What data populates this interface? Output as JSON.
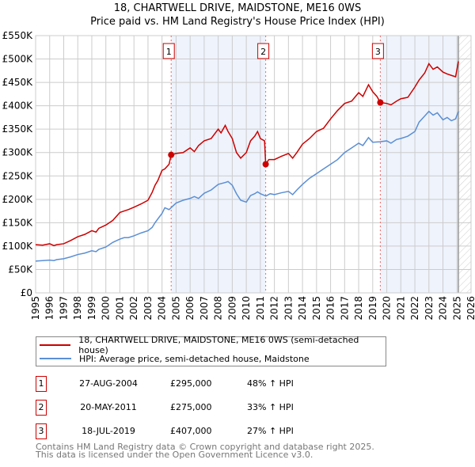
{
  "chart_data": {
    "type": "line",
    "title": "18, CHARTWELL DRIVE, MAIDSTONE, ME16 0WS",
    "subtitle": "Price paid vs. HM Land Registry's House Price Index (HPI)",
    "xlim": [
      1995,
      2026
    ],
    "ylim": [
      0,
      550000
    ],
    "yticks": [
      {
        "v": 0,
        "label": "£0"
      },
      {
        "v": 50000,
        "label": "£50K"
      },
      {
        "v": 100000,
        "label": "£100K"
      },
      {
        "v": 150000,
        "label": "£150K"
      },
      {
        "v": 200000,
        "label": "£200K"
      },
      {
        "v": 250000,
        "label": "£250K"
      },
      {
        "v": 300000,
        "label": "£300K"
      },
      {
        "v": 350000,
        "label": "£350K"
      },
      {
        "v": 400000,
        "label": "£400K"
      },
      {
        "v": 450000,
        "label": "£450K"
      },
      {
        "v": 500000,
        "label": "£500K"
      },
      {
        "v": 550000,
        "label": "£550K"
      }
    ],
    "xticks": [
      "1995",
      "1996",
      "1997",
      "1998",
      "1999",
      "2000",
      "2001",
      "2002",
      "2003",
      "2004",
      "2005",
      "2006",
      "2007",
      "2008",
      "2009",
      "2010",
      "2011",
      "2012",
      "2013",
      "2014",
      "2015",
      "2016",
      "2017",
      "2018",
      "2019",
      "2020",
      "2021",
      "2022",
      "2023",
      "2024",
      "2025",
      "2026"
    ],
    "grid": true,
    "forecast_from": 2025.1,
    "series": [
      {
        "name": "18, CHARTWELL DRIVE, MAIDSTONE, ME16 0WS (semi-detached house)",
        "color": "#cc0000",
        "x": [
          1995,
          1995.5,
          1996,
          1996.3,
          1996.5,
          1997,
          1997.5,
          1998,
          1998.5,
          1999,
          1999.3,
          1999.5,
          2000,
          2000.5,
          2001,
          2001.3,
          2001.6,
          2002,
          2002.5,
          2003,
          2003.3,
          2003.5,
          2003.7,
          2004,
          2004.2,
          2004.5,
          2004.65,
          2005,
          2005.5,
          2006,
          2006.3,
          2006.6,
          2007,
          2007.5,
          2008,
          2008.2,
          2008.5,
          2008.7,
          2009,
          2009.3,
          2009.6,
          2010,
          2010.3,
          2010.6,
          2010.8,
          2011,
          2011.3,
          2011.38,
          2011.6,
          2012,
          2012.5,
          2013,
          2013.3,
          2013.6,
          2014,
          2014.5,
          2015,
          2015.5,
          2016,
          2016.5,
          2017,
          2017.5,
          2018,
          2018.3,
          2018.7,
          2019,
          2019.3,
          2019.54,
          2020,
          2020.3,
          2020.7,
          2021,
          2021.5,
          2022,
          2022.3,
          2022.7,
          2023,
          2023.3,
          2023.6,
          2024,
          2024.3,
          2024.6,
          2024.9,
          2025.1
        ],
        "y": [
          103,
          102,
          105,
          101,
          103,
          105,
          112,
          120,
          125,
          133,
          130,
          138,
          145,
          155,
          172,
          175,
          178,
          183,
          190,
          198,
          215,
          230,
          240,
          262,
          265,
          275,
          295,
          298,
          300,
          310,
          302,
          315,
          325,
          330,
          350,
          342,
          358,
          345,
          330,
          300,
          288,
          300,
          325,
          335,
          345,
          330,
          325,
          275,
          285,
          285,
          292,
          298,
          288,
          300,
          318,
          330,
          345,
          352,
          372,
          390,
          405,
          410,
          428,
          420,
          445,
          430,
          420,
          407,
          405,
          402,
          410,
          415,
          418,
          440,
          455,
          470,
          490,
          478,
          483,
          472,
          468,
          465,
          462,
          495
        ]
      },
      {
        "name": "HPI: Average price, semi-detached house, Maidstone",
        "color": "#5b8fd4",
        "x": [
          1995,
          1995.5,
          1996,
          1996.3,
          1996.5,
          1997,
          1997.5,
          1998,
          1998.5,
          1999,
          1999.3,
          1999.5,
          2000,
          2000.5,
          2001,
          2001.3,
          2001.6,
          2002,
          2002.5,
          2003,
          2003.3,
          2003.5,
          2003.7,
          2004,
          2004.2,
          2004.5,
          2005,
          2005.5,
          2006,
          2006.3,
          2006.6,
          2007,
          2007.5,
          2008,
          2008.5,
          2008.7,
          2009,
          2009.3,
          2009.6,
          2010,
          2010.3,
          2010.6,
          2010.8,
          2011,
          2011.4,
          2011.7,
          2012,
          2012.5,
          2013,
          2013.3,
          2013.6,
          2014,
          2014.5,
          2015,
          2015.5,
          2016,
          2016.5,
          2017,
          2017.5,
          2018,
          2018.3,
          2018.7,
          2019,
          2019.5,
          2020,
          2020.3,
          2020.7,
          2021,
          2021.5,
          2022,
          2022.3,
          2022.7,
          2023,
          2023.3,
          2023.6,
          2024,
          2024.3,
          2024.6,
          2024.9,
          2025.1
        ],
        "y": [
          68,
          69,
          70,
          69,
          71,
          73,
          77,
          82,
          85,
          90,
          88,
          93,
          98,
          108,
          115,
          118,
          118,
          122,
          128,
          133,
          140,
          150,
          158,
          170,
          182,
          178,
          192,
          198,
          202,
          206,
          202,
          213,
          220,
          232,
          236,
          238,
          230,
          212,
          198,
          194,
          208,
          212,
          216,
          212,
          207,
          212,
          210,
          214,
          217,
          210,
          220,
          232,
          245,
          255,
          265,
          275,
          285,
          300,
          310,
          320,
          315,
          332,
          322,
          323,
          325,
          320,
          328,
          330,
          335,
          345,
          365,
          378,
          388,
          380,
          385,
          370,
          375,
          368,
          372,
          388
        ]
      }
    ],
    "transactions": [
      {
        "id": "1",
        "x": 2004.65,
        "date": "27-AUG-2004",
        "price": "£295,000",
        "value": 295,
        "hpi": "48% ↑ HPI"
      },
      {
        "id": "2",
        "x": 2011.38,
        "date": "20-MAY-2011",
        "price": "£275,000",
        "value": 275,
        "hpi": "33% ↑ HPI"
      },
      {
        "id": "3",
        "x": 2019.54,
        "date": "18-JUL-2019",
        "price": "£407,000",
        "value": 407,
        "hpi": "27% ↑ HPI"
      }
    ],
    "unit_note": "series y in £K"
  },
  "footer": {
    "line1": "Contains HM Land Registry data © Crown copyright and database right 2025.",
    "line2": "This data is licensed under the Open Government Licence v3.0."
  }
}
